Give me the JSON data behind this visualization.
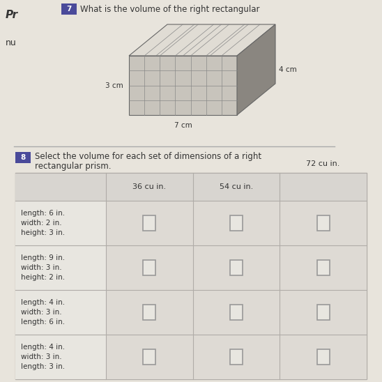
{
  "background_color": "#dcd8d0",
  "page_color": "#e8e4dc",
  "header_text": "Pr",
  "sidebar_text": "nu",
  "question7_text": "What is the volume of the right rectangular",
  "question8_label": "Select the volume for each set of dimensions of a right\nrectangular prism.",
  "prism_dims": {
    "length": "7 cm",
    "width": "3 cm",
    "height": "4 cm"
  },
  "col_headers": [
    "36 cu in.",
    "54 cu in.",
    "72 cu in."
  ],
  "rows": [
    "length: 6 in.\nwidth: 2 in.\nheight: 3 in.",
    "length: 9 in.\nwidth: 3 in.\nheight: 2 in.",
    "length: 4 in.\nwidth: 3 in.\nlength: 6 in.",
    "length: 4 in.\nwidth: 3 in.\nlength: 3 in."
  ],
  "table_bg": "#e0ddd8",
  "grid_color": "#b0aca8",
  "box_color": "#999999",
  "text_color": "#333333",
  "cell_fontsize": 7.5,
  "header_fontsize": 8,
  "q_fontsize": 8.5
}
